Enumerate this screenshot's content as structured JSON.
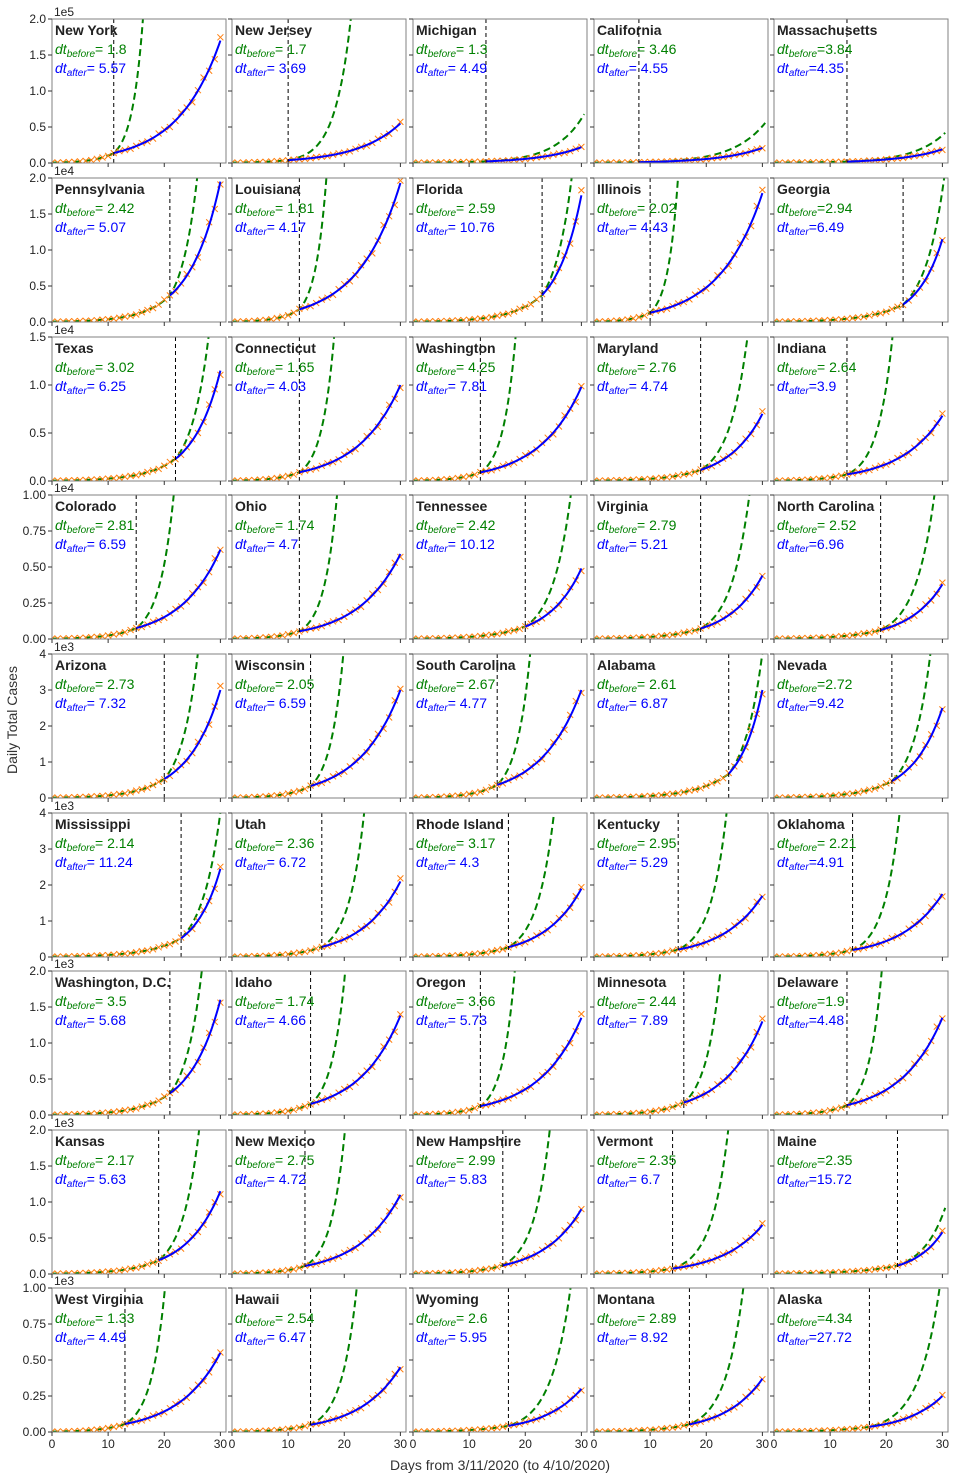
{
  "figure": {
    "ylabel": "Daily Total Cases",
    "xlabel": "Days from 3/11/2020 (to 4/10/2020)",
    "dt_before_symbol": "dt",
    "dt_before_sub": "before",
    "dt_after_symbol": "dt",
    "dt_after_sub": "after"
  },
  "colors": {
    "data_markers": "#ff7f0e",
    "before_fit": "#008000",
    "after_fit": "#0000ff",
    "breakpoint": "#000000",
    "panel_border": "#808080"
  },
  "chart_data": {
    "type": "scatter",
    "layout": {
      "rows": 9,
      "cols": 5
    },
    "x_range": [
      0,
      31
    ],
    "x_ticks": [
      0,
      10,
      20,
      30
    ],
    "rows": [
      {
        "scale_label": "1e5",
        "ymax": 2.0,
        "ticks": [
          "0.0",
          "0.5",
          "1.0",
          "1.5",
          "2.0"
        ]
      },
      {
        "scale_label": "1e4",
        "ymax": 2.0,
        "ticks": [
          "0.0",
          "0.5",
          "1.0",
          "1.5",
          "2.0"
        ]
      },
      {
        "scale_label": "1e4",
        "ymax": 1.5,
        "ticks": [
          "0.0",
          "0.5",
          "1.0",
          "1.5"
        ]
      },
      {
        "scale_label": "1e4",
        "ymax": 1.0,
        "ticks": [
          "0.00",
          "0.25",
          "0.50",
          "0.75",
          "1.00"
        ]
      },
      {
        "scale_label": "1e3",
        "ymax": 4.0,
        "ticks": [
          "0",
          "1",
          "2",
          "3",
          "4"
        ]
      },
      {
        "scale_label": "1e3",
        "ymax": 4.0,
        "ticks": [
          "0",
          "1",
          "2",
          "3",
          "4"
        ]
      },
      {
        "scale_label": "1e3",
        "ymax": 2.0,
        "ticks": [
          "0.0",
          "0.5",
          "1.0",
          "1.5",
          "2.0"
        ]
      },
      {
        "scale_label": "1e3",
        "ymax": 2.0,
        "ticks": [
          "0.0",
          "0.5",
          "1.0",
          "1.5",
          "2.0"
        ]
      },
      {
        "scale_label": "1e3",
        "ymax": 1.0,
        "ticks": [
          "0.00",
          "0.25",
          "0.50",
          "0.75",
          "1.00"
        ]
      }
    ],
    "panels": [
      {
        "state": "New York",
        "dt_before": "= 1.8",
        "dt_after": "= 5.57",
        "breakpoint": 11,
        "end_value": 1.7
      },
      {
        "state": "New Jersey",
        "dt_before": "= 1.7",
        "dt_after": "= 3.69",
        "breakpoint": 10,
        "end_value": 0.55
      },
      {
        "state": "Michigan",
        "dt_before": "= 1.3",
        "dt_after": "= 4.49",
        "breakpoint": 13,
        "end_value": 0.22
      },
      {
        "state": "California",
        "dt_before": "= 3.46",
        "dt_after": "= 4.55",
        "breakpoint": 8,
        "end_value": 0.21
      },
      {
        "state": "Massachusetts",
        "dt_before": "=3.84",
        "dt_after": "=4.35",
        "breakpoint": 13,
        "end_value": 0.19
      },
      {
        "state": "Pennsylvania",
        "dt_before": "= 2.42",
        "dt_after": "= 5.07",
        "breakpoint": 21,
        "end_value": 1.95
      },
      {
        "state": "Louisiana",
        "dt_before": "= 1.81",
        "dt_after": "= 4.17",
        "breakpoint": 12,
        "end_value": 1.93
      },
      {
        "state": "Florida",
        "dt_before": "= 2.59",
        "dt_after": "= 10.76",
        "breakpoint": 23,
        "end_value": 1.76
      },
      {
        "state": "Illinois",
        "dt_before": "= 2.02",
        "dt_after": "= 4.43",
        "breakpoint": 10,
        "end_value": 1.79
      },
      {
        "state": "Georgia",
        "dt_before": "=2.94",
        "dt_after": "=6.49",
        "breakpoint": 23,
        "end_value": 1.15
      },
      {
        "state": "Texas",
        "dt_before": "= 3.02",
        "dt_after": "= 6.25",
        "breakpoint": 22,
        "end_value": 1.15
      },
      {
        "state": "Connecticut",
        "dt_before": "= 1.65",
        "dt_after": "= 4.03",
        "breakpoint": 12,
        "end_value": 1.0
      },
      {
        "state": "Washington",
        "dt_before": "= 4.25",
        "dt_after": "= 7.81",
        "breakpoint": 12,
        "end_value": 0.98
      },
      {
        "state": "Maryland",
        "dt_before": "= 2.76",
        "dt_after": "= 4.74",
        "breakpoint": 19,
        "end_value": 0.7
      },
      {
        "state": "Indiana",
        "dt_before": "= 2.64",
        "dt_after": "=3.9",
        "breakpoint": 13,
        "end_value": 0.68
      },
      {
        "state": "Colorado",
        "dt_before": "= 2.81",
        "dt_after": "= 6.59",
        "breakpoint": 15,
        "end_value": 0.62
      },
      {
        "state": "Ohio",
        "dt_before": "= 1.74",
        "dt_after": "= 4.7",
        "breakpoint": 12,
        "end_value": 0.59
      },
      {
        "state": "Tennessee",
        "dt_before": "= 2.42",
        "dt_after": "= 10.12",
        "breakpoint": 20,
        "end_value": 0.49
      },
      {
        "state": "Virginia",
        "dt_before": "= 2.79",
        "dt_after": "= 5.21",
        "breakpoint": 19,
        "end_value": 0.44
      },
      {
        "state": "North Carolina",
        "dt_before": "= 2.52",
        "dt_after": "=6.96",
        "breakpoint": 19,
        "end_value": 0.38
      },
      {
        "state": "Arizona",
        "dt_before": "= 2.73",
        "dt_after": "= 7.32",
        "breakpoint": 20,
        "end_value": 3.0
      },
      {
        "state": "Wisconsin",
        "dt_before": "= 2.05",
        "dt_after": "= 6.59",
        "breakpoint": 14,
        "end_value": 3.0
      },
      {
        "state": "South Carolina",
        "dt_before": "= 2.67",
        "dt_after": "= 4.77",
        "breakpoint": 15,
        "end_value": 3.0
      },
      {
        "state": "Alabama",
        "dt_before": "= 2.61",
        "dt_after": "= 6.87",
        "breakpoint": 24,
        "end_value": 3.0
      },
      {
        "state": "Nevada",
        "dt_before": "=2.72",
        "dt_after": "=9.42",
        "breakpoint": 21,
        "end_value": 2.5
      },
      {
        "state": "Mississippi",
        "dt_before": "= 2.14",
        "dt_after": "= 11.24",
        "breakpoint": 23,
        "end_value": 2.45
      },
      {
        "state": "Utah",
        "dt_before": "= 2.36",
        "dt_after": "= 6.72",
        "breakpoint": 16,
        "end_value": 2.1
      },
      {
        "state": "Rhode Island",
        "dt_before": "= 3.17",
        "dt_after": "= 4.3",
        "breakpoint": 17,
        "end_value": 1.9
      },
      {
        "state": "Kentucky",
        "dt_before": "= 2.95",
        "dt_after": "= 5.29",
        "breakpoint": 15,
        "end_value": 1.7
      },
      {
        "state": "Oklahoma",
        "dt_before": "= 2.21",
        "dt_after": "=4.91",
        "breakpoint": 14,
        "end_value": 1.75
      },
      {
        "state": "Washington, D.C.",
        "dt_before": "= 3.5",
        "dt_after": "= 5.68",
        "breakpoint": 21,
        "end_value": 1.6
      },
      {
        "state": "Idaho",
        "dt_before": "= 1.74",
        "dt_after": "= 4.66",
        "breakpoint": 14,
        "end_value": 1.38
      },
      {
        "state": "Oregon",
        "dt_before": "= 3.66",
        "dt_after": "= 5.73",
        "breakpoint": 12,
        "end_value": 1.35
      },
      {
        "state": "Minnesota",
        "dt_before": "= 2.44",
        "dt_after": "= 7.89",
        "breakpoint": 16,
        "end_value": 1.3
      },
      {
        "state": "Delaware",
        "dt_before": "=1.9",
        "dt_after": "=4.48",
        "breakpoint": 13,
        "end_value": 1.35
      },
      {
        "state": "Kansas",
        "dt_before": "= 2.17",
        "dt_after": "= 5.63",
        "breakpoint": 19,
        "end_value": 1.15
      },
      {
        "state": "New Mexico",
        "dt_before": "= 2.75",
        "dt_after": "= 4.72",
        "breakpoint": 13,
        "end_value": 1.1
      },
      {
        "state": "New Hampshire",
        "dt_before": "= 2.99",
        "dt_after": "= 5.83",
        "breakpoint": 16,
        "end_value": 0.9
      },
      {
        "state": "Vermont",
        "dt_before": "= 2.35",
        "dt_after": "= 6.7",
        "breakpoint": 14,
        "end_value": 0.68
      },
      {
        "state": "Maine",
        "dt_before": "=2.35",
        "dt_after": "=15.72",
        "breakpoint": 22,
        "end_value": 0.58
      },
      {
        "state": "West Virginia",
        "dt_before": "= 1.33",
        "dt_after": "= 4.49",
        "breakpoint": 13,
        "end_value": 0.55
      },
      {
        "state": "Hawaii",
        "dt_before": "= 2.54",
        "dt_after": "= 6.47",
        "breakpoint": 14,
        "end_value": 0.45
      },
      {
        "state": "Wyoming",
        "dt_before": "= 2.6",
        "dt_after": "= 5.95",
        "breakpoint": 17,
        "end_value": 0.3
      },
      {
        "state": "Montana",
        "dt_before": "= 2.89",
        "dt_after": "= 8.92",
        "breakpoint": 17,
        "end_value": 0.37
      },
      {
        "state": "Alaska",
        "dt_before": "=4.34",
        "dt_after": "=27.72",
        "breakpoint": 17,
        "end_value": 0.25
      }
    ]
  }
}
